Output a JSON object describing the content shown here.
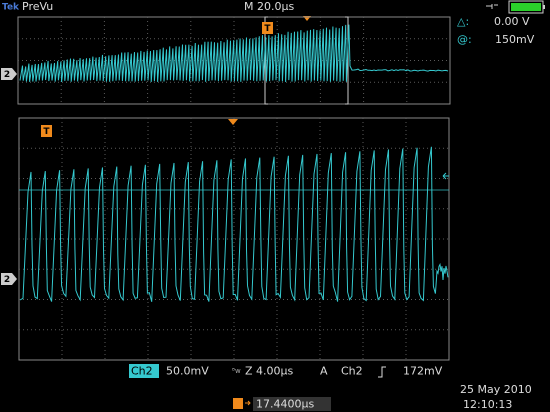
{
  "header": {
    "brand": "Tek",
    "mode": "PreVu",
    "timebase": "M 20.0µs"
  },
  "cursor": {
    "delta_label": "△:",
    "delta_value": "0.00 V",
    "at_label": "@:",
    "at_value": "150mV"
  },
  "markers": {
    "overview_trigger": "T",
    "overview_channel": "2",
    "trigger": "T",
    "channel": "2"
  },
  "status": {
    "channel": "Ch2",
    "scale": "50.0mV",
    "zoom": "Z 4.00µs",
    "trigger_source_prefix": "A",
    "trigger_source": "Ch2",
    "trigger_level": "172mV",
    "position": "17.4400µs",
    "date": "25 May 2010",
    "time": "12:10:13"
  }
}
